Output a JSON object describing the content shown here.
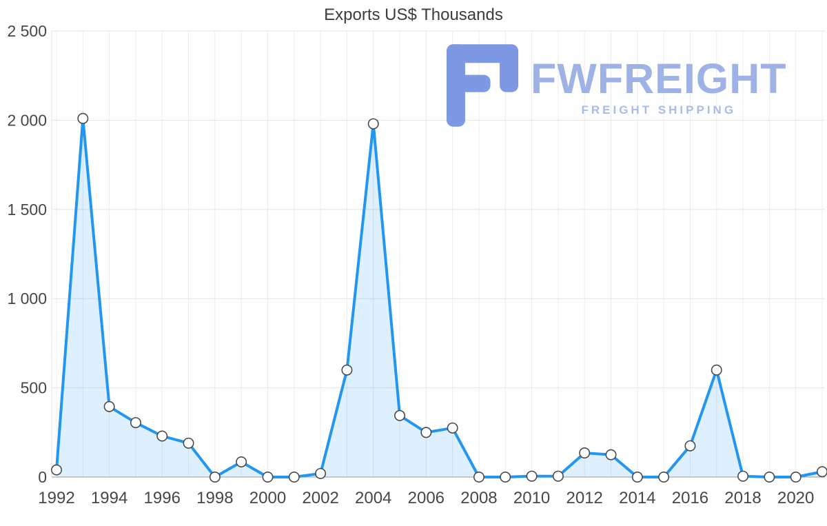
{
  "watermark": {
    "name": "FWFREIGHT",
    "tagline": "FREIGHT SHIPPING",
    "colors": {
      "icon": "#7e99e3",
      "text": "#9fb2e6",
      "tagline_text": "#a9bce9"
    }
  },
  "chart_data": {
    "type": "area",
    "title": "Exports US$ Thousands",
    "xlabel": "",
    "ylabel": "",
    "x": [
      1992,
      1993,
      1994,
      1995,
      1996,
      1997,
      1998,
      1999,
      2000,
      2001,
      2002,
      2003,
      2004,
      2005,
      2006,
      2007,
      2008,
      2009,
      2010,
      2011,
      2012,
      2013,
      2014,
      2015,
      2016,
      2017,
      2018,
      2019,
      2020,
      2021
    ],
    "values": [
      40,
      2010,
      395,
      305,
      230,
      190,
      0,
      85,
      0,
      0,
      20,
      600,
      1980,
      345,
      250,
      275,
      0,
      0,
      5,
      5,
      135,
      125,
      0,
      0,
      175,
      600,
      5,
      0,
      0,
      30
    ],
    "ylim": [
      0,
      2500
    ],
    "y_ticks": [
      0,
      500,
      1000,
      1500,
      2000,
      2500
    ],
    "y_tick_labels": [
      "0",
      "500",
      "1 000",
      "1 500",
      "2 000",
      "2 500"
    ],
    "x_tick_years": [
      1992,
      1994,
      1996,
      1998,
      2000,
      2002,
      2004,
      2006,
      2008,
      2010,
      2012,
      2014,
      2016,
      2018,
      2020
    ],
    "grid": true,
    "legend": "none",
    "colors": {
      "line": "#2196f3",
      "fill": "rgba(33,150,243,0.15)",
      "marker_fill": "#ffffff",
      "marker_stroke": "#4a4a4a",
      "grid_line": "#e4e4e4",
      "grid_line_vertical": "#ececec",
      "axis_line": "#9b9b9b",
      "tick_text": "#474747"
    }
  }
}
